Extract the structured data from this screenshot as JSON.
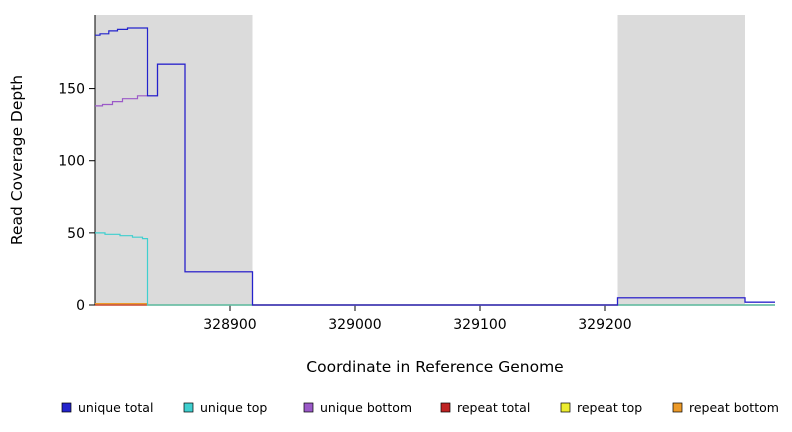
{
  "chart_data": {
    "type": "line",
    "title": "",
    "xlabel": "Coordinate in Reference Genome",
    "ylabel": "Read Coverage Depth",
    "xlim": [
      328792,
      329336
    ],
    "ylim": [
      0,
      201
    ],
    "x_ticks": [
      328900,
      329000,
      329100,
      329200
    ],
    "y_ticks": [
      0,
      50,
      100,
      150
    ],
    "grid": false,
    "legend_position": "bottom",
    "shaded_regions": [
      {
        "x0": 328792,
        "x1": 328918,
        "color": "#dbdbdb"
      },
      {
        "x0": 329210,
        "x1": 329312,
        "color": "#dbdbdb"
      }
    ],
    "series": [
      {
        "name": "repeat top",
        "color": "#eded2f",
        "points": [
          [
            328792,
            0
          ],
          [
            329336,
            0
          ]
        ]
      },
      {
        "name": "repeat total",
        "color": "#bf2323",
        "points": [
          [
            328792,
            0
          ],
          [
            329336,
            0
          ]
        ]
      },
      {
        "name": "repeat bottom",
        "color": "#ec9a29",
        "points": [
          [
            328792,
            1
          ],
          [
            328834,
            1
          ],
          [
            328834,
            0
          ],
          [
            329336,
            0
          ]
        ]
      },
      {
        "name": "unique top",
        "color": "#3fcfcf",
        "points": [
          [
            328792,
            50
          ],
          [
            328800,
            50
          ],
          [
            328800,
            49
          ],
          [
            328812,
            49
          ],
          [
            328812,
            48
          ],
          [
            328822,
            48
          ],
          [
            328822,
            47
          ],
          [
            328830,
            47
          ],
          [
            328830,
            46
          ],
          [
            328834,
            46
          ],
          [
            328834,
            0
          ],
          [
            329336,
            0
          ]
        ]
      },
      {
        "name": "unique bottom",
        "color": "#9b59c8",
        "points": [
          [
            328792,
            138
          ],
          [
            328798,
            138
          ],
          [
            328798,
            139
          ],
          [
            328806,
            139
          ],
          [
            328806,
            141
          ],
          [
            328814,
            141
          ],
          [
            328814,
            143
          ],
          [
            328826,
            143
          ],
          [
            328826,
            145
          ],
          [
            328842,
            145
          ],
          [
            328842,
            167
          ],
          [
            328864,
            167
          ],
          [
            328864,
            23
          ],
          [
            328918,
            23
          ],
          [
            328918,
            0
          ],
          [
            329210,
            0
          ],
          [
            329210,
            5
          ],
          [
            329312,
            5
          ],
          [
            329312,
            2
          ],
          [
            329336,
            2
          ]
        ]
      },
      {
        "name": "unique total",
        "color": "#2323cc",
        "points": [
          [
            328792,
            187
          ],
          [
            328796,
            187
          ],
          [
            328796,
            188
          ],
          [
            328803,
            188
          ],
          [
            328803,
            190
          ],
          [
            328810,
            190
          ],
          [
            328810,
            191
          ],
          [
            328818,
            191
          ],
          [
            328818,
            192
          ],
          [
            328834,
            192
          ],
          [
            328834,
            145
          ],
          [
            328842,
            145
          ],
          [
            328842,
            167
          ],
          [
            328864,
            167
          ],
          [
            328864,
            23
          ],
          [
            328918,
            23
          ],
          [
            328918,
            0
          ],
          [
            329210,
            0
          ],
          [
            329210,
            5
          ],
          [
            329312,
            5
          ],
          [
            329312,
            2
          ],
          [
            329336,
            2
          ]
        ]
      }
    ],
    "legend": [
      {
        "label": "unique total",
        "color": "#2323cc"
      },
      {
        "label": "unique top",
        "color": "#3fcfcf"
      },
      {
        "label": "unique bottom",
        "color": "#9b59c8"
      },
      {
        "label": "repeat total",
        "color": "#bf2323"
      },
      {
        "label": "repeat top",
        "color": "#eded2f"
      },
      {
        "label": "repeat bottom",
        "color": "#ec9a29"
      }
    ]
  }
}
